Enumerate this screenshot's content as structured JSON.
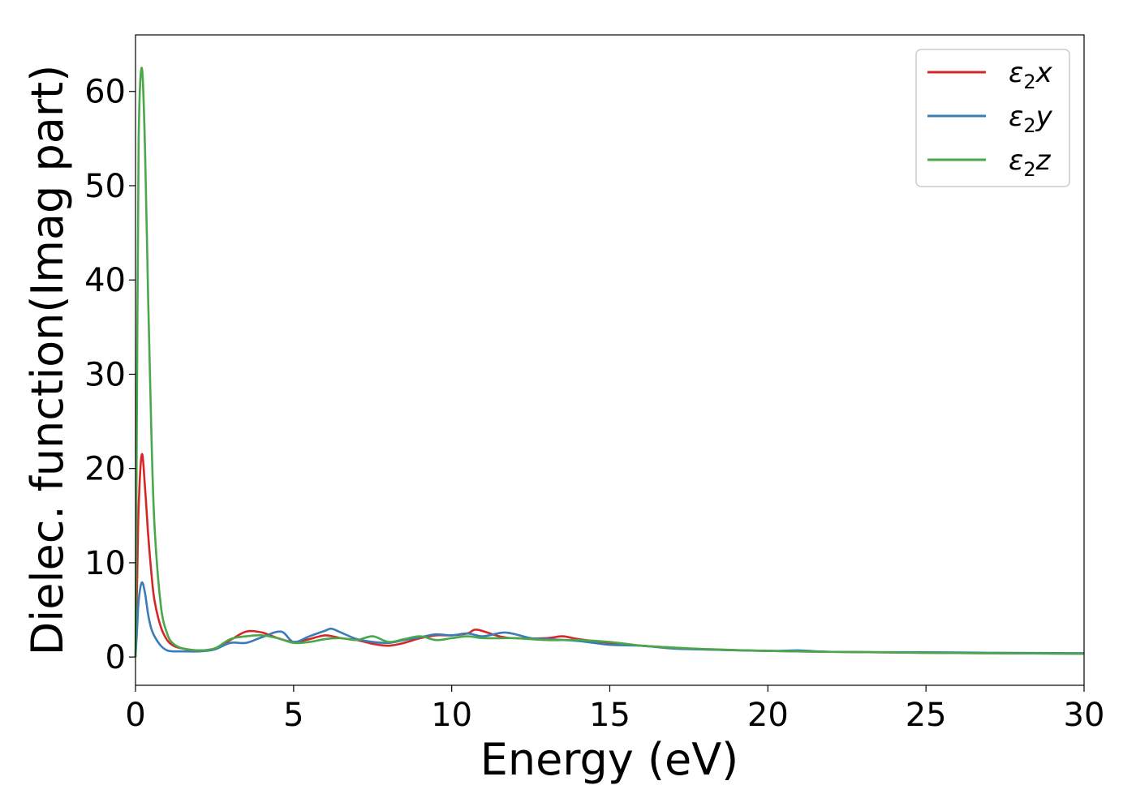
{
  "chart_data": {
    "type": "line",
    "title": "",
    "xlabel": "Energy (eV)",
    "ylabel": "Dielec. function(Imag part)",
    "xlim": [
      0,
      30
    ],
    "ylim": [
      -3,
      66
    ],
    "xticks": [
      0,
      5,
      10,
      15,
      20,
      25,
      30
    ],
    "xtick_labels": [
      "0",
      "5",
      "10",
      "15",
      "20",
      "25",
      "30"
    ],
    "yticks": [
      0,
      10,
      20,
      30,
      40,
      50,
      60
    ],
    "ytick_labels": [
      "0",
      "10",
      "20",
      "30",
      "40",
      "50",
      "60"
    ],
    "grid": false,
    "legend_position": "top-right",
    "series": [
      {
        "name": "ε2x",
        "label_base": "ε",
        "label_sub": "2",
        "label_var": "x",
        "color": "#d62728",
        "x": [
          0,
          0.05,
          0.1,
          0.2,
          0.3,
          0.4,
          0.5,
          0.6,
          0.8,
          1.0,
          1.2,
          1.5,
          2.0,
          2.5,
          3.0,
          3.5,
          4.0,
          4.5,
          5.0,
          5.5,
          6.0,
          6.5,
          7.0,
          7.5,
          8.0,
          8.5,
          9.0,
          9.5,
          10.0,
          10.5,
          10.8,
          11.5,
          12.0,
          13.0,
          13.5,
          14.0,
          15.0,
          16.0,
          17.0,
          18.0,
          20.0,
          22.0,
          25.0,
          27.0,
          30.0
        ],
        "y": [
          0,
          8,
          16,
          21.5,
          18,
          13,
          9,
          6,
          3.2,
          1.8,
          1.2,
          0.9,
          0.7,
          0.9,
          1.8,
          2.7,
          2.6,
          2.0,
          1.6,
          1.9,
          2.3,
          2.0,
          1.8,
          1.4,
          1.2,
          1.5,
          2.0,
          2.3,
          2.3,
          2.5,
          2.9,
          2.2,
          2.0,
          2.0,
          2.2,
          1.9,
          1.5,
          1.2,
          1.0,
          0.8,
          0.65,
          0.55,
          0.45,
          0.4,
          0.35
        ]
      },
      {
        "name": "ε2y",
        "label_base": "ε",
        "label_sub": "2",
        "label_var": "y",
        "color": "#3a7cb8",
        "x": [
          0,
          0.05,
          0.1,
          0.2,
          0.3,
          0.4,
          0.5,
          0.6,
          0.8,
          1.0,
          1.2,
          1.5,
          2.0,
          2.5,
          3.0,
          3.5,
          4.0,
          4.6,
          5.0,
          5.5,
          6.0,
          6.2,
          6.5,
          7.0,
          7.5,
          8.0,
          8.5,
          9.0,
          9.5,
          10.0,
          10.5,
          11.0,
          11.7,
          12.5,
          13.0,
          14.0,
          15.0,
          16.0,
          17.0,
          18.0,
          20.0,
          21.0,
          22.0,
          25.0,
          27.0,
          30.0
        ],
        "y": [
          0,
          3,
          6,
          7.9,
          6.8,
          4.5,
          3.0,
          2.2,
          1.2,
          0.7,
          0.6,
          0.6,
          0.6,
          0.8,
          1.5,
          1.5,
          2.1,
          2.7,
          1.6,
          2.2,
          2.8,
          3.0,
          2.6,
          1.9,
          1.6,
          1.5,
          1.8,
          2.1,
          2.4,
          2.3,
          2.5,
          2.2,
          2.6,
          2.0,
          1.9,
          1.7,
          1.3,
          1.2,
          0.9,
          0.8,
          0.65,
          0.7,
          0.55,
          0.5,
          0.45,
          0.4
        ]
      },
      {
        "name": "ε2z",
        "label_base": "ε",
        "label_sub": "2",
        "label_var": "z",
        "color": "#4aa84a",
        "x": [
          0,
          0.05,
          0.1,
          0.2,
          0.3,
          0.4,
          0.5,
          0.6,
          0.8,
          1.0,
          1.2,
          1.5,
          2.0,
          2.5,
          3.0,
          3.5,
          4.0,
          4.5,
          5.0,
          5.5,
          6.0,
          6.5,
          7.0,
          7.5,
          8.0,
          8.5,
          9.0,
          9.5,
          10.0,
          10.5,
          11.0,
          12.0,
          13.0,
          14.0,
          15.0,
          16.0,
          17.0,
          18.0,
          20.0,
          22.0,
          25.0,
          27.0,
          30.0
        ],
        "y": [
          0,
          30,
          55,
          62.5,
          54,
          38,
          24,
          14,
          5.5,
          2.5,
          1.4,
          0.9,
          0.7,
          0.9,
          1.9,
          2.2,
          2.3,
          2.0,
          1.5,
          1.6,
          1.9,
          2.0,
          1.8,
          2.2,
          1.6,
          1.9,
          2.2,
          1.8,
          2.0,
          2.2,
          2.0,
          2.0,
          1.8,
          1.8,
          1.6,
          1.2,
          1.0,
          0.85,
          0.65,
          0.55,
          0.45,
          0.4,
          0.35
        ]
      }
    ]
  }
}
